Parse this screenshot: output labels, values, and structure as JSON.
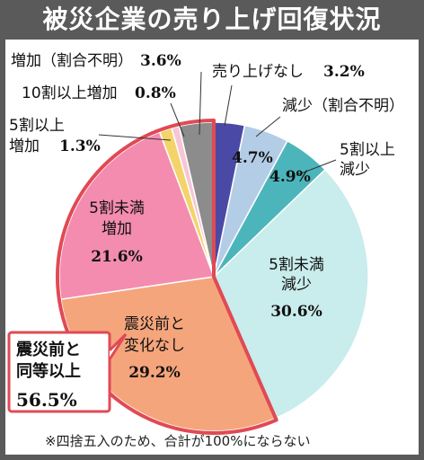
{
  "title": "被災企業の売り上げ回復状況",
  "footnote": "※四捨五入のため、合計が100%にならない",
  "callout": {
    "lines": [
      "震災前と",
      "同等以上"
    ],
    "value": "56.5%"
  },
  "chart_data": {
    "type": "pie",
    "title": "被災企業の売り上げ回復状況",
    "unit": "%",
    "slices": [
      {
        "label": "売り上げなし",
        "value": 3.2,
        "color": "#4a4aa6"
      },
      {
        "label": "減少（割合不明）",
        "value": 4.7,
        "color": "#b4cde6"
      },
      {
        "label": "5割以上減少",
        "value": 4.9,
        "color": "#4cb5bc"
      },
      {
        "label": "5割未満減少",
        "value": 30.6,
        "color": "#c9ecec"
      },
      {
        "label": "震災前と変化なし",
        "value": 29.2,
        "color": "#f5a57c"
      },
      {
        "label": "5割未満増加",
        "value": 21.6,
        "color": "#f48cb0"
      },
      {
        "label": "5割以上増加",
        "value": 1.3,
        "color": "#f3d46a"
      },
      {
        "label": "10割以上増加",
        "value": 0.8,
        "color": "#f7c6d6"
      },
      {
        "label": "増加（割合不明）",
        "value": 3.6,
        "color": "#8c8c8c"
      }
    ],
    "group_highlight": {
      "label": "震災前と同等以上",
      "value": 56.5,
      "color": "#e04a54"
    }
  }
}
